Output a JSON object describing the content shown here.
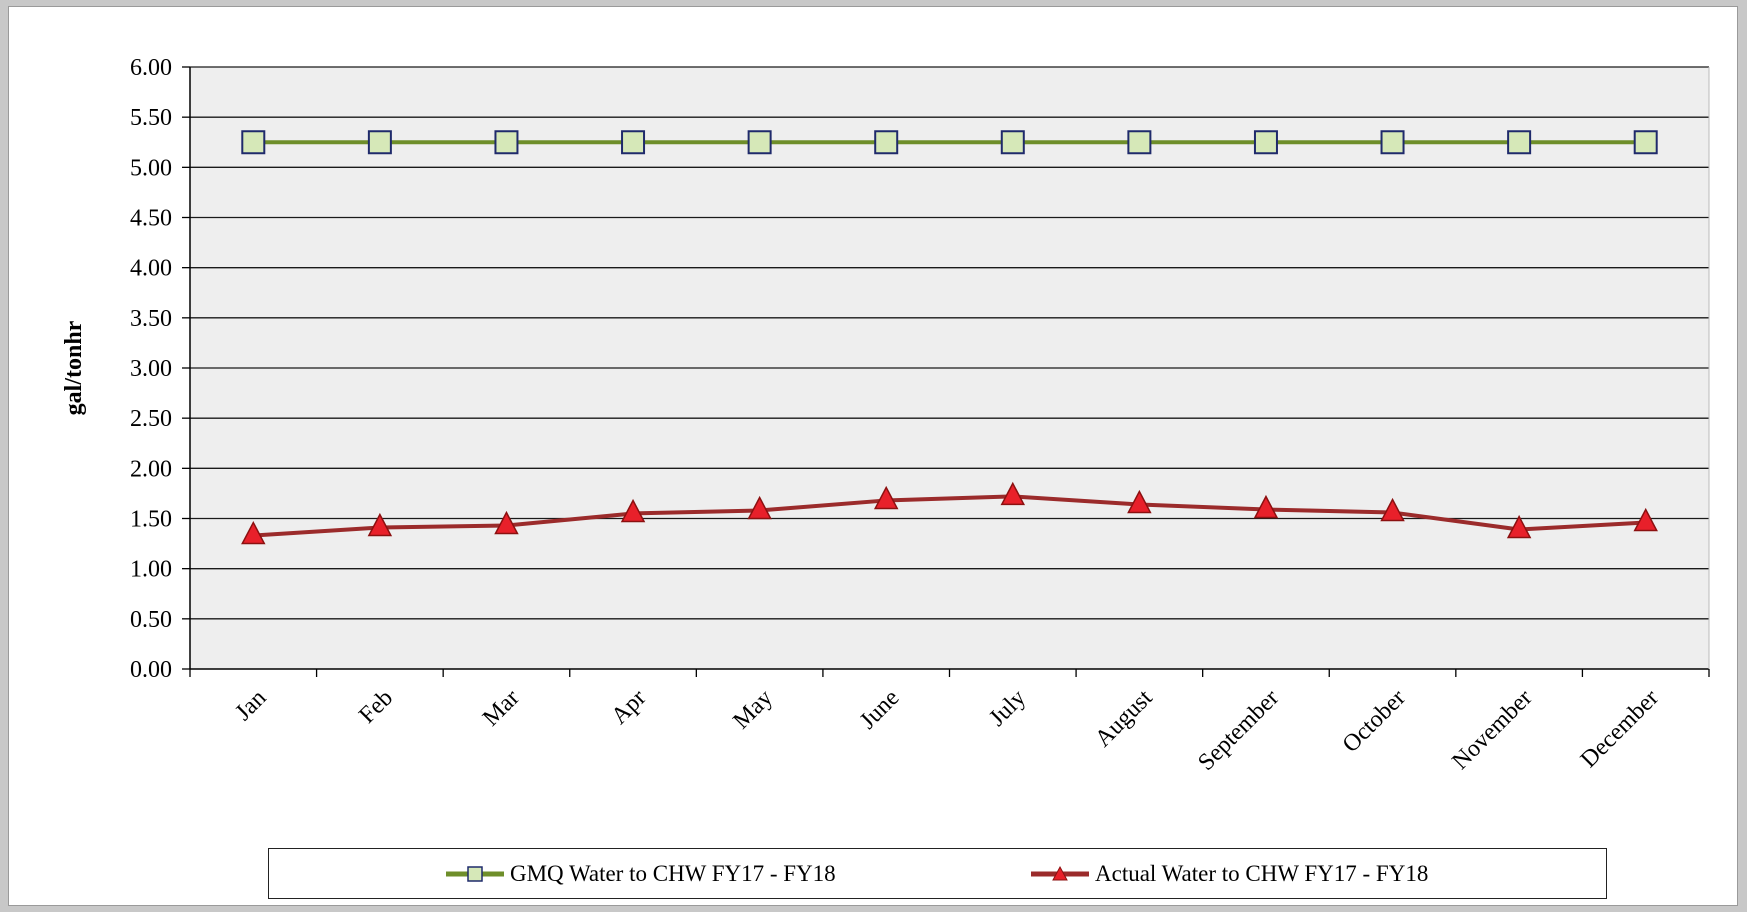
{
  "chart_data": {
    "type": "line",
    "title": "",
    "xlabel": "",
    "ylabel": "gal/tonhr",
    "ylim": [
      0,
      6
    ],
    "yticks": [
      "0.00",
      "0.50",
      "1.00",
      "1.50",
      "2.00",
      "2.50",
      "3.00",
      "3.50",
      "4.00",
      "4.50",
      "5.00",
      "5.50",
      "6.00"
    ],
    "grid": true,
    "legend_position": "bottom",
    "categories": [
      "Jan",
      "Feb",
      "Mar",
      "Apr",
      "May",
      "June",
      "July",
      "August",
      "September",
      "October",
      "November",
      "December"
    ],
    "series": [
      {
        "name": "GMQ Water to CHW FY17 - FY18",
        "values": [
          5.25,
          5.25,
          5.25,
          5.25,
          5.25,
          5.25,
          5.25,
          5.25,
          5.25,
          5.25,
          5.25,
          5.25
        ],
        "line_color": "#6e8e2a",
        "marker": "square",
        "marker_fill": "#d6e8b8",
        "marker_stroke": "#1f2a6b"
      },
      {
        "name": "Actual Water to CHW FY17 - FY18",
        "values": [
          1.33,
          1.41,
          1.43,
          1.55,
          1.58,
          1.68,
          1.72,
          1.64,
          1.59,
          1.56,
          1.39,
          1.46
        ],
        "line_color": "#9b2b2b",
        "marker": "triangle",
        "marker_fill": "#e8202a",
        "marker_stroke": "#8b1010"
      }
    ],
    "plot_background": "#eeeeee"
  }
}
